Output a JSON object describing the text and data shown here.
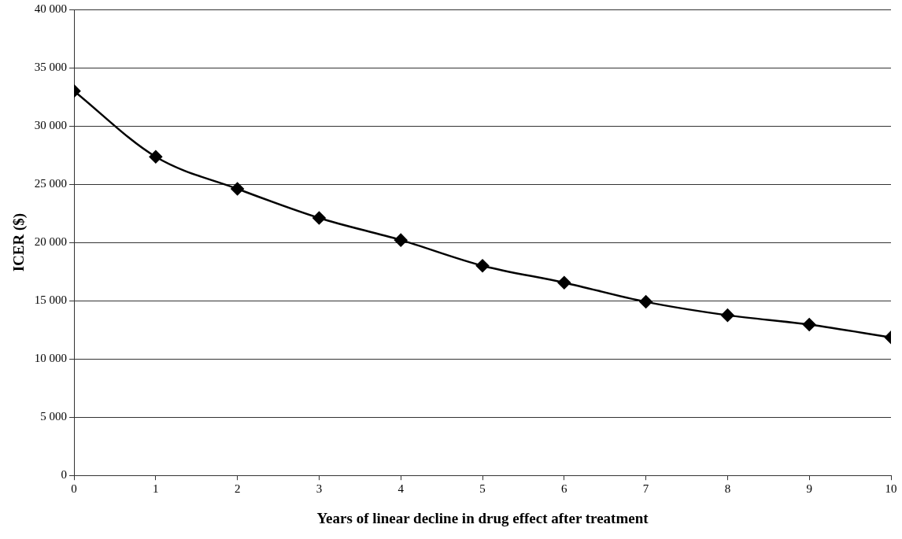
{
  "chart_data": {
    "type": "line",
    "xlabel": "Years of linear decline in drug effect after treatment",
    "ylabel": "ICER ($)",
    "x": [
      0,
      1,
      2,
      3,
      4,
      5,
      6,
      7,
      8,
      9,
      10
    ],
    "series": [
      {
        "color": "#000000",
        "values": [
          33000,
          27350,
          24600,
          22100,
          20200,
          18000,
          16550,
          14900,
          13750,
          12950,
          11850
        ]
      }
    ],
    "xlim": [
      0,
      10
    ],
    "xticks": [
      0,
      1,
      2,
      3,
      4,
      5,
      6,
      7,
      8,
      9,
      10
    ],
    "ylim": [
      0,
      40000
    ],
    "yticks": [
      {
        "value": 0,
        "label": "0"
      },
      {
        "value": 5000,
        "label": "5 000"
      },
      {
        "value": 10000,
        "label": "10 000"
      },
      {
        "value": 15000,
        "label": "15 000"
      },
      {
        "value": 20000,
        "label": "20 000"
      },
      {
        "value": 25000,
        "label": "25 000"
      },
      {
        "value": 30000,
        "label": "30 000"
      },
      {
        "value": 35000,
        "label": "35 000"
      },
      {
        "value": 40000,
        "label": "40 000"
      }
    ],
    "grid": "y",
    "legend": false,
    "marker": "diamond",
    "line_style": "solid"
  }
}
